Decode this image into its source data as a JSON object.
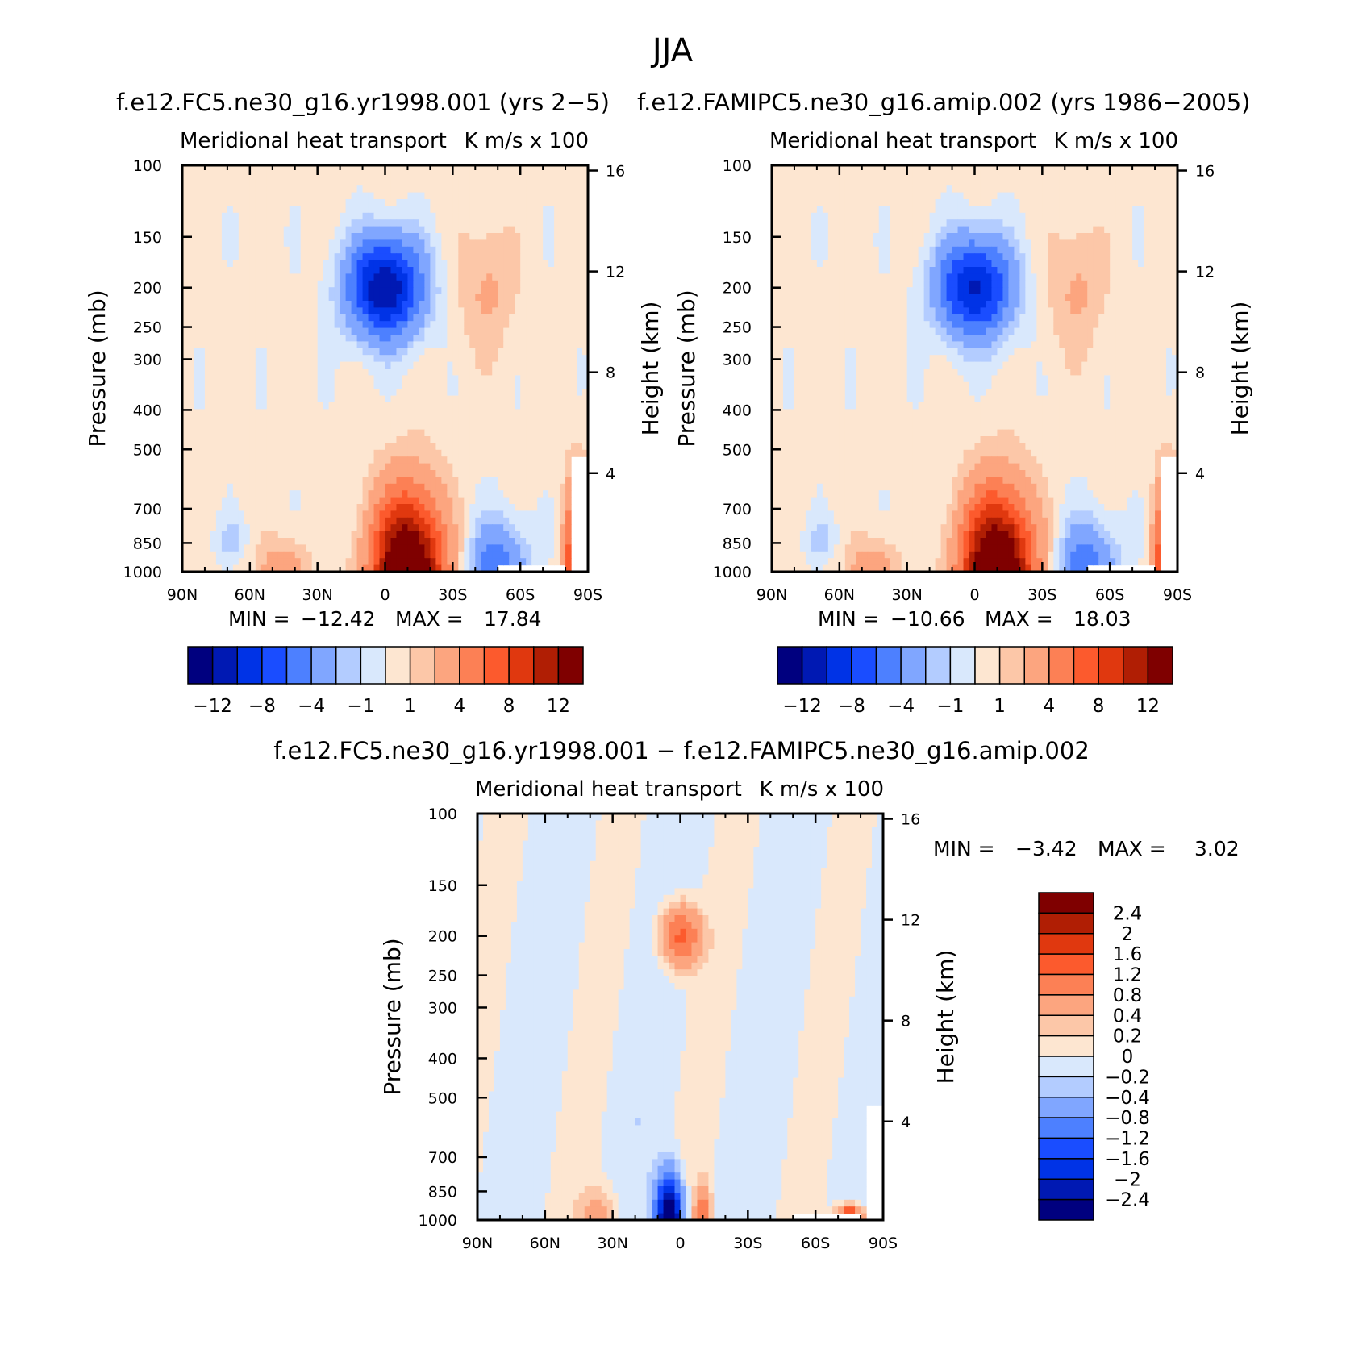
{
  "figure": {
    "title": "JJA"
  },
  "colors": {
    "panel_palette": [
      "#00007f",
      "#0019b3",
      "#0033e6",
      "#1a4dff",
      "#4d80ff",
      "#80a6ff",
      "#b3ccff",
      "#d9e8fc",
      "#fde6d1",
      "#fcc7a8",
      "#fca57f",
      "#fc8055",
      "#fc5a2d",
      "#e0380f",
      "#b01e04",
      "#7f0000"
    ],
    "diff_palette": [
      "#00007f",
      "#0019b3",
      "#0033e6",
      "#1a4dff",
      "#4d80ff",
      "#80a6ff",
      "#b3ccff",
      "#d9e8fc",
      "#fde6d1",
      "#fcc7a8",
      "#fca57f",
      "#fc8055",
      "#fc5a2d",
      "#e0380f",
      "#b01e04",
      "#7f0000"
    ]
  },
  "chart_data": [
    {
      "type": "heatmap",
      "case_title": "f.e12.FC5.ne30_g16.yr1998.001 (yrs 2−5)",
      "left_string": "Meridional heat transport",
      "right_string": "K m/s x 100",
      "ylabel": "Pressure (mb)",
      "y2label": "Height (km)",
      "x_tick_labels": [
        "90N",
        "60N",
        "30N",
        "0",
        "30S",
        "60S",
        "90S"
      ],
      "y_tick_labels": [
        "100",
        "150",
        "200",
        "250",
        "300",
        "400",
        "500",
        "700",
        "850",
        "1000"
      ],
      "y2_tick_labels": [
        "16",
        "12",
        "8",
        "4"
      ],
      "min_label": "MIN =",
      "min_value": "−12.42",
      "max_label": "MAX =",
      "max_value": "17.84",
      "colorbar_labels": [
        "−12",
        "−8",
        "−4",
        "−1",
        "1",
        "4",
        "8",
        "12"
      ],
      "field": {
        "upper_jet": {
          "lat": 0,
          "plev": 200,
          "value": -12.42
        },
        "surface_max": {
          "lat": -10,
          "plev": 1000,
          "value": 17.84
        },
        "upper_pos": {
          "lat": -45,
          "plev": 200,
          "value": 2
        },
        "sh_low_neg": {
          "lat": -50,
          "plev": 1000,
          "value": -6
        },
        "polar_pos": {
          "lat": -85,
          "plev": 1000,
          "value": 10
        }
      }
    },
    {
      "type": "heatmap",
      "case_title": "f.e12.FAMIPC5.ne30_g16.amip.002 (yrs 1986−2005)",
      "left_string": "Meridional heat transport",
      "right_string": "K m/s x 100",
      "ylabel": "Pressure (mb)",
      "y2label": "Height (km)",
      "x_tick_labels": [
        "90N",
        "60N",
        "30N",
        "0",
        "30S",
        "60S",
        "90S"
      ],
      "y_tick_labels": [
        "100",
        "150",
        "200",
        "250",
        "300",
        "400",
        "500",
        "700",
        "850",
        "1000"
      ],
      "y2_tick_labels": [
        "16",
        "12",
        "8",
        "4"
      ],
      "min_label": "MIN =",
      "min_value": "−10.66",
      "max_label": "MAX =",
      "max_value": "18.03",
      "colorbar_labels": [
        "−12",
        "−8",
        "−4",
        "−1",
        "1",
        "4",
        "8",
        "12"
      ],
      "field": {
        "upper_jet": {
          "lat": 0,
          "plev": 200,
          "value": -10.66
        },
        "surface_max": {
          "lat": -10,
          "plev": 1000,
          "value": 18.03
        },
        "upper_pos": {
          "lat": -45,
          "plev": 200,
          "value": 2
        },
        "sh_low_neg": {
          "lat": -50,
          "plev": 1000,
          "value": -6
        },
        "polar_pos": {
          "lat": -85,
          "plev": 1000,
          "value": 10
        }
      }
    },
    {
      "type": "heatmap",
      "case_title": "f.e12.FC5.ne30_g16.yr1998.001 − f.e12.FAMIPC5.ne30_g16.amip.002",
      "left_string": "Meridional heat transport",
      "right_string": "K m/s x 100",
      "ylabel": "Pressure (mb)",
      "y2label": "Height (km)",
      "x_tick_labels": [
        "90N",
        "60N",
        "30N",
        "0",
        "30S",
        "60S",
        "90S"
      ],
      "y_tick_labels": [
        "100",
        "150",
        "200",
        "250",
        "300",
        "400",
        "500",
        "700",
        "850",
        "1000"
      ],
      "y2_tick_labels": [
        "16",
        "12",
        "8",
        "4"
      ],
      "min_label": "MIN =",
      "min_value": "−3.42",
      "max_label": "MAX =",
      "max_value": "3.02",
      "colorbar_labels": [
        "2.4",
        "2",
        "1.6",
        "1.2",
        "0.8",
        "0.4",
        "0.2",
        "0",
        "−0.2",
        "−0.4",
        "−0.8",
        "−1.2",
        "−1.6",
        "−2",
        "−2.4"
      ],
      "field": {
        "upper_pos": {
          "lat": 0,
          "plev": 200,
          "value": 1.4
        },
        "surface_neg": {
          "lat": 5,
          "plev": 1000,
          "value": -3.42
        },
        "surface_pos": {
          "lat": -10,
          "plev": 1000,
          "value": 1.2
        },
        "polar_pos": {
          "lat": -75,
          "plev": 1000,
          "value": 3.02
        }
      }
    }
  ]
}
